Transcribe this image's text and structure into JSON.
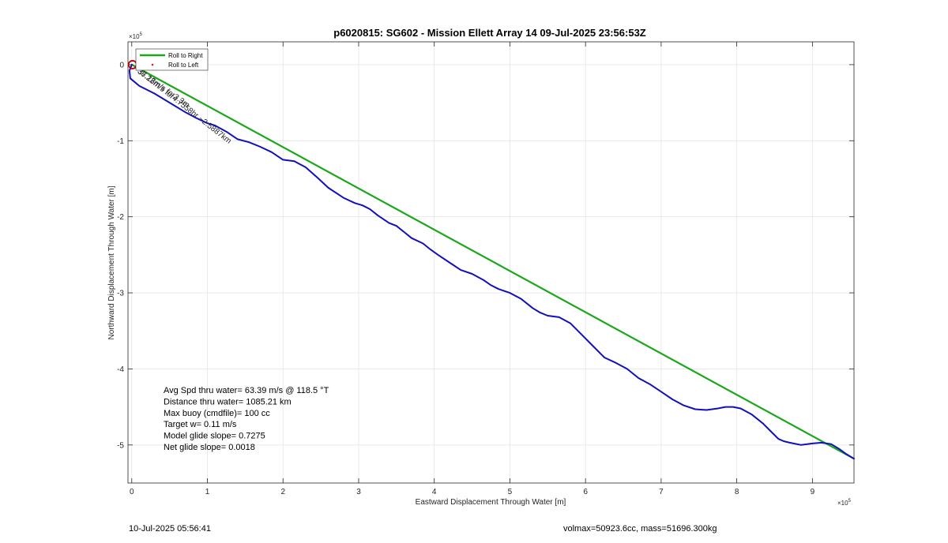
{
  "chart_data": {
    "type": "line",
    "title": "p6020815: SG602 - Mission Ellett Array 14 09-Jul-2025 23:56:53Z",
    "xlabel": "Eastward Displacement Through Water [m]",
    "ylabel": "Northward Displacement Through Water [m]",
    "x_exponent": "×10",
    "x_exponent_power": "5",
    "y_exponent": "×10",
    "y_exponent_power": "5",
    "xlim": [
      -0.05,
      9.55
    ],
    "ylim": [
      -5.5,
      0.3
    ],
    "x_ticks": [
      0,
      1,
      2,
      3,
      4,
      5,
      6,
      7,
      8,
      9
    ],
    "x_tick_labels": [
      "0",
      "1",
      "2",
      "3",
      "4",
      "5",
      "6",
      "7",
      "8",
      "9"
    ],
    "y_ticks": [
      0,
      -1,
      -2,
      -3,
      -4,
      -5
    ],
    "y_tick_labels": [
      "0",
      "-1",
      "-2",
      "-3",
      "-4",
      "-5"
    ],
    "grid": true,
    "legend_position": "top-left",
    "legend": [
      {
        "label": "Roll to Right",
        "color": "#1aa81a",
        "style": "line"
      },
      {
        "label": "Roll to Left",
        "color": "#e02020",
        "style": "dot"
      }
    ],
    "series": [
      {
        "name": "Roll to Right",
        "color": "#1aa81a",
        "x": [
          0,
          9.55
        ],
        "y": [
          0,
          -5.18
        ]
      },
      {
        "name": "",
        "color": "#1010c0",
        "x": [
          0,
          -0.03,
          -0.02,
          0.1,
          0.3,
          0.5,
          0.7,
          0.85,
          1.0,
          1.1,
          1.25,
          1.4,
          1.55,
          1.7,
          1.85,
          2.0,
          2.15,
          2.3,
          2.45,
          2.6,
          2.8,
          2.95,
          3.05,
          3.15,
          3.25,
          3.4,
          3.5,
          3.6,
          3.7,
          3.85,
          3.95,
          4.05,
          4.2,
          4.35,
          4.5,
          4.65,
          4.75,
          4.85,
          5.0,
          5.15,
          5.3,
          5.4,
          5.5,
          5.65,
          5.8,
          5.95,
          6.1,
          6.25,
          6.4,
          6.55,
          6.7,
          6.85,
          7.0,
          7.15,
          7.3,
          7.45,
          7.6,
          7.75,
          7.85,
          7.95,
          8.05,
          8.2,
          8.35,
          8.45,
          8.55,
          8.62,
          8.7,
          8.85,
          9.0,
          9.12,
          9.25,
          9.35,
          9.45,
          9.55
        ],
        "y": [
          0,
          -0.08,
          -0.18,
          -0.28,
          -0.38,
          -0.5,
          -0.62,
          -0.7,
          -0.77,
          -0.8,
          -0.88,
          -0.98,
          -1.02,
          -1.08,
          -1.15,
          -1.25,
          -1.27,
          -1.35,
          -1.48,
          -1.62,
          -1.75,
          -1.82,
          -1.85,
          -1.9,
          -1.98,
          -2.08,
          -2.12,
          -2.2,
          -2.28,
          -2.35,
          -2.43,
          -2.5,
          -2.6,
          -2.7,
          -2.75,
          -2.83,
          -2.9,
          -2.95,
          -3.0,
          -3.08,
          -3.2,
          -3.26,
          -3.3,
          -3.32,
          -3.4,
          -3.55,
          -3.7,
          -3.85,
          -3.92,
          -4.0,
          -4.12,
          -4.2,
          -4.3,
          -4.4,
          -4.48,
          -4.53,
          -4.54,
          -4.52,
          -4.5,
          -4.5,
          -4.52,
          -4.6,
          -4.72,
          -4.82,
          -4.92,
          -4.95,
          -4.97,
          -5.0,
          -4.98,
          -4.97,
          -4.99,
          -5.05,
          -5.12,
          -5.18
        ]
      }
    ],
    "markers": [
      {
        "name": "start-circle",
        "x": 0.01,
        "y": 0.0,
        "color": "#c00000"
      }
    ],
    "annotations": [
      {
        "text": "~36.22m/s for4.7558hr ~2.5887km",
        "x": 0.0,
        "y": -0.02,
        "rotation": 38
      },
      {
        "text": "~37.18m/s for3.3m",
        "x": 0.0,
        "y": -0.03,
        "rotation": 35
      }
    ],
    "stats": [
      "Avg Spd thru water= 63.39 m/s @ 118.5 °T",
      "Distance thru water= 1085.21 km",
      "Max buoy (cmdfile)= 100 cc",
      "Target w= 0.11 m/s",
      "Model glide slope= 0.7275",
      "Net glide slope= 0.0018"
    ]
  },
  "footer": {
    "timestamp": "10-Jul-2025 05:56:41",
    "info": "volmax=50923.6cc, mass=51696.300kg"
  }
}
